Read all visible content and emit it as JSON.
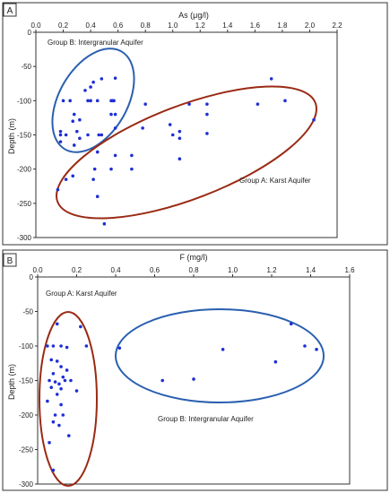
{
  "chart_data": [
    {
      "panel": "A",
      "type": "scatter",
      "xlabel": "As (μg/l)",
      "ylabel": "Depth (m)",
      "xlim": [
        0,
        2.2
      ],
      "ylim": [
        -300,
        0
      ],
      "x_ticks": [
        "0.0",
        "0.2",
        "0.4",
        "0.6",
        "0.8",
        "1.0",
        "1.2",
        "1.4",
        "1.6",
        "1.8",
        "2.0",
        "2.2"
      ],
      "y_ticks": [
        "0",
        "-50",
        "-100",
        "-150",
        "-200",
        "-250",
        "-300"
      ],
      "x_axis_position": "top",
      "grid": false,
      "points": [
        {
          "x": 0.42,
          "y": -73
        },
        {
          "x": 0.4,
          "y": -80
        },
        {
          "x": 0.48,
          "y": -68
        },
        {
          "x": 0.55,
          "y": -100
        },
        {
          "x": 0.58,
          "y": -67
        },
        {
          "x": 0.2,
          "y": -100
        },
        {
          "x": 0.25,
          "y": -100
        },
        {
          "x": 0.36,
          "y": -85
        },
        {
          "x": 0.4,
          "y": -100
        },
        {
          "x": 0.45,
          "y": -100
        },
        {
          "x": 0.28,
          "y": -120
        },
        {
          "x": 0.32,
          "y": -128
        },
        {
          "x": 0.27,
          "y": -130
        },
        {
          "x": 0.18,
          "y": -145
        },
        {
          "x": 0.18,
          "y": -150
        },
        {
          "x": 0.22,
          "y": -150
        },
        {
          "x": 0.3,
          "y": -145
        },
        {
          "x": 0.32,
          "y": -155
        },
        {
          "x": 0.18,
          "y": -160
        },
        {
          "x": 0.28,
          "y": -165
        },
        {
          "x": 0.46,
          "y": -150
        },
        {
          "x": 0.48,
          "y": -150
        },
        {
          "x": 0.56,
          "y": -100
        },
        {
          "x": 0.57,
          "y": -100
        },
        {
          "x": 0.38,
          "y": -100
        },
        {
          "x": 0.38,
          "y": -150
        },
        {
          "x": 0.45,
          "y": -175
        },
        {
          "x": 0.43,
          "y": -200
        },
        {
          "x": 0.55,
          "y": -120
        },
        {
          "x": 0.58,
          "y": -120
        },
        {
          "x": 0.58,
          "y": -140
        },
        {
          "x": 0.58,
          "y": -180
        },
        {
          "x": 0.55,
          "y": -200
        },
        {
          "x": 0.45,
          "y": -240
        },
        {
          "x": 0.5,
          "y": -280
        },
        {
          "x": 0.42,
          "y": -215
        },
        {
          "x": 0.27,
          "y": -210
        },
        {
          "x": 0.22,
          "y": -215
        },
        {
          "x": 0.16,
          "y": -230
        },
        {
          "x": 0.7,
          "y": -200
        },
        {
          "x": 0.7,
          "y": -180
        },
        {
          "x": 0.8,
          "y": -105
        },
        {
          "x": 0.78,
          "y": -140
        },
        {
          "x": 0.98,
          "y": -135
        },
        {
          "x": 1.0,
          "y": -150
        },
        {
          "x": 1.05,
          "y": -155
        },
        {
          "x": 1.05,
          "y": -185
        },
        {
          "x": 1.05,
          "y": -145
        },
        {
          "x": 1.12,
          "y": -105
        },
        {
          "x": 1.25,
          "y": -105
        },
        {
          "x": 1.25,
          "y": -120
        },
        {
          "x": 1.25,
          "y": -148
        },
        {
          "x": 1.62,
          "y": -105
        },
        {
          "x": 1.72,
          "y": -68
        },
        {
          "x": 1.82,
          "y": -100
        },
        {
          "x": 2.03,
          "y": -128
        }
      ],
      "annotations": [
        "Group B: Intergranular Aquifer",
        "Group A: Karst Aquifer"
      ]
    },
    {
      "panel": "B",
      "type": "scatter",
      "xlabel": "F (mg/l)",
      "ylabel": "Depth (m)",
      "xlim": [
        0,
        1.6
      ],
      "ylim": [
        -300,
        0
      ],
      "x_ticks": [
        "0.0",
        "0.2",
        "0.4",
        "0.6",
        "0.8",
        "1.0",
        "1.2",
        "1.4",
        "1.6"
      ],
      "y_ticks": [
        "0",
        "-50",
        "-100",
        "-150",
        "-200",
        "-250",
        "-300"
      ],
      "x_axis_position": "top",
      "grid": false,
      "points": [
        {
          "x": 0.1,
          "y": -68
        },
        {
          "x": 0.22,
          "y": -72
        },
        {
          "x": 0.25,
          "y": -100
        },
        {
          "x": 0.05,
          "y": -100
        },
        {
          "x": 0.08,
          "y": -100
        },
        {
          "x": 0.12,
          "y": -100
        },
        {
          "x": 0.15,
          "y": -102
        },
        {
          "x": 0.07,
          "y": -120
        },
        {
          "x": 0.1,
          "y": -122
        },
        {
          "x": 0.12,
          "y": -130
        },
        {
          "x": 0.15,
          "y": -135
        },
        {
          "x": 0.08,
          "y": -140
        },
        {
          "x": 0.13,
          "y": -145
        },
        {
          "x": 0.06,
          "y": -150
        },
        {
          "x": 0.09,
          "y": -152
        },
        {
          "x": 0.11,
          "y": -155
        },
        {
          "x": 0.14,
          "y": -150
        },
        {
          "x": 0.17,
          "y": -150
        },
        {
          "x": 0.07,
          "y": -160
        },
        {
          "x": 0.12,
          "y": -162
        },
        {
          "x": 0.2,
          "y": -165
        },
        {
          "x": 0.1,
          "y": -170
        },
        {
          "x": 0.05,
          "y": -180
        },
        {
          "x": 0.12,
          "y": -185
        },
        {
          "x": 0.09,
          "y": -200
        },
        {
          "x": 0.13,
          "y": -200
        },
        {
          "x": 0.08,
          "y": -210
        },
        {
          "x": 0.11,
          "y": -215
        },
        {
          "x": 0.16,
          "y": -230
        },
        {
          "x": 0.06,
          "y": -240
        },
        {
          "x": 0.08,
          "y": -280
        },
        {
          "x": 0.42,
          "y": -103
        },
        {
          "x": 0.64,
          "y": -150
        },
        {
          "x": 0.8,
          "y": -148
        },
        {
          "x": 0.95,
          "y": -105
        },
        {
          "x": 1.22,
          "y": -123
        },
        {
          "x": 1.3,
          "y": -68
        },
        {
          "x": 1.37,
          "y": -100
        },
        {
          "x": 1.43,
          "y": -105
        }
      ],
      "annotations": [
        "Group A: Karst Aquifer",
        "Group B: Intergranular Aquifer"
      ]
    }
  ],
  "colors": {
    "points": "#1f2fd6",
    "group_b_ellipse_A": "#2a5fb0",
    "group_a_ellipse_A": "#9a2a14",
    "group_a_ellipse_B": "#9a2a14",
    "group_b_ellipse_B": "#2a5fb0"
  }
}
